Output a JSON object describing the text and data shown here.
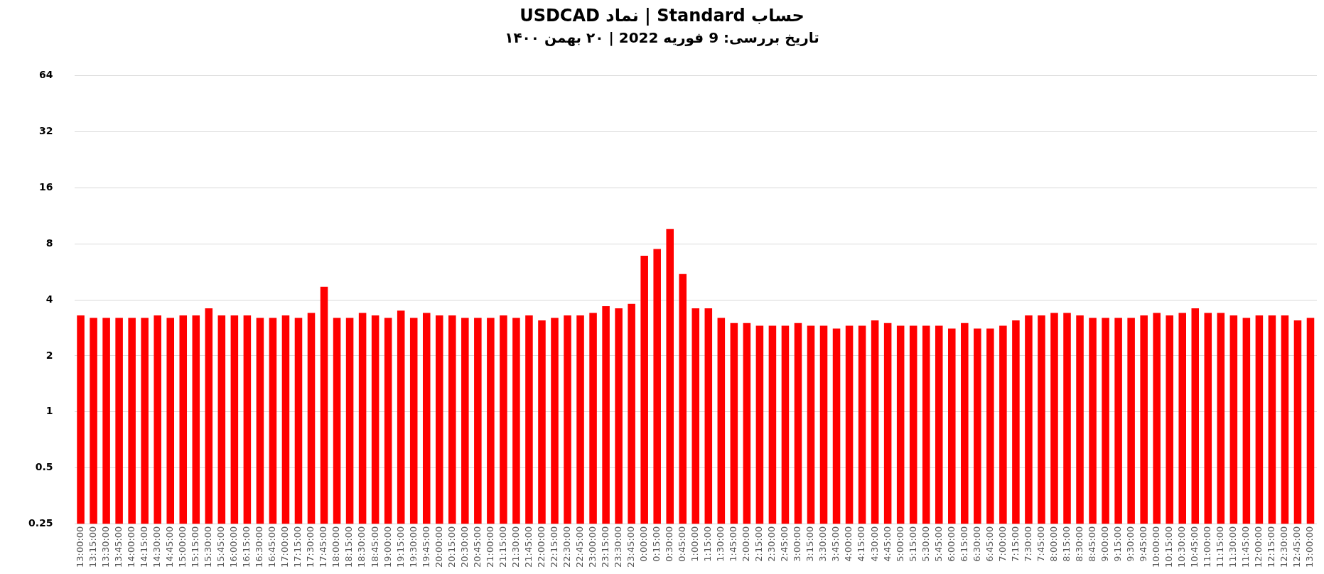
{
  "chart_data": {
    "type": "bar",
    "title": "حساب Standard | نماد USDCAD",
    "subtitle": "تاریخ بررسی: 9 فوریه 2022 | ۲۰ بهمن ۱۴۰۰",
    "categories": [
      "13:00:00",
      "13:15:00",
      "13:30:00",
      "13:45:00",
      "14:00:00",
      "14:15:00",
      "14:30:00",
      "14:45:00",
      "15:00:00",
      "15:15:00",
      "15:30:00",
      "15:45:00",
      "16:00:00",
      "16:15:00",
      "16:30:00",
      "16:45:00",
      "17:00:00",
      "17:15:00",
      "17:30:00",
      "17:45:00",
      "18:00:00",
      "18:15:00",
      "18:30:00",
      "18:45:00",
      "19:00:00",
      "19:15:00",
      "19:30:00",
      "19:45:00",
      "20:00:00",
      "20:15:00",
      "20:30:00",
      "20:45:00",
      "21:00:00",
      "21:15:00",
      "21:30:00",
      "21:45:00",
      "22:00:00",
      "22:15:00",
      "22:30:00",
      "22:45:00",
      "23:00:00",
      "23:15:00",
      "23:30:00",
      "23:45:00",
      "0:00:00",
      "0:15:00",
      "0:30:00",
      "0:45:00",
      "1:00:00",
      "1:15:00",
      "1:30:00",
      "1:45:00",
      "2:00:00",
      "2:15:00",
      "2:30:00",
      "2:45:00",
      "3:00:00",
      "3:15:00",
      "3:30:00",
      "3:45:00",
      "4:00:00",
      "4:15:00",
      "4:30:00",
      "4:45:00",
      "5:00:00",
      "5:15:00",
      "5:30:00",
      "5:45:00",
      "6:00:00",
      "6:15:00",
      "6:30:00",
      "6:45:00",
      "7:00:00",
      "7:15:00",
      "7:30:00",
      "7:45:00",
      "8:00:00",
      "8:15:00",
      "8:30:00",
      "8:45:00",
      "9:00:00",
      "9:15:00",
      "9:30:00",
      "9:45:00",
      "10:00:00",
      "10:15:00",
      "10:30:00",
      "10:45:00",
      "11:00:00",
      "11:15:00",
      "11:30:00",
      "11:45:00",
      "12:00:00",
      "12:15:00",
      "12:30:00",
      "12:45:00",
      "13:00:00"
    ],
    "values": [
      3.3,
      3.2,
      3.2,
      3.2,
      3.2,
      3.2,
      3.3,
      3.2,
      3.3,
      3.3,
      3.6,
      3.3,
      3.3,
      3.3,
      3.2,
      3.2,
      3.3,
      3.2,
      3.4,
      4.7,
      3.2,
      3.2,
      3.4,
      3.3,
      3.2,
      3.5,
      3.2,
      3.4,
      3.3,
      3.3,
      3.2,
      3.2,
      3.2,
      3.3,
      3.2,
      3.3,
      3.1,
      3.2,
      3.3,
      3.3,
      3.4,
      3.7,
      3.6,
      3.8,
      6.9,
      7.5,
      9.6,
      5.5,
      3.6,
      3.6,
      3.2,
      3.0,
      3.0,
      2.9,
      2.9,
      2.9,
      3.0,
      2.9,
      2.9,
      2.8,
      2.9,
      2.9,
      3.1,
      3.0,
      2.9,
      2.9,
      2.9,
      2.9,
      2.8,
      3.0,
      2.8,
      2.8,
      2.9,
      3.1,
      3.3,
      3.3,
      3.4,
      3.4,
      3.3,
      3.2,
      3.2,
      3.2,
      3.2,
      3.3,
      3.4,
      3.3,
      3.4,
      3.6,
      3.4,
      3.4,
      3.3,
      3.2,
      3.3,
      3.3,
      3.3,
      3.1,
      3.2
    ],
    "color": "#ff0000",
    "log": true,
    "ylim": [
      0.25,
      64
    ],
    "yticks": [
      0.25,
      0.5,
      1,
      2,
      4,
      8,
      16,
      32,
      64
    ],
    "grid": "y"
  }
}
